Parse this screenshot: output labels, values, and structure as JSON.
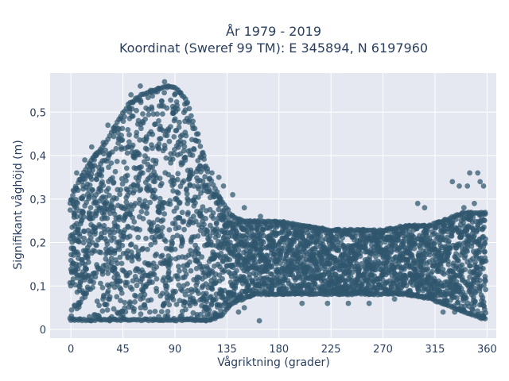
{
  "chart_data": {
    "type": "scatter",
    "title_line1": "År 1979 - 2019",
    "title_line2": "Koordinat (Sweref 99 TM): E 345894, N 6197960",
    "xlabel": "Vågriktning (grader)",
    "ylabel": "Signifikant våghöjd (m)",
    "xlim": [
      -18,
      368
    ],
    "ylim": [
      -0.02,
      0.59
    ],
    "xticks": [
      0,
      45,
      90,
      135,
      180,
      225,
      270,
      315,
      360
    ],
    "xtick_labels": [
      "0",
      "45",
      "90",
      "135",
      "180",
      "225",
      "270",
      "315",
      "360"
    ],
    "yticks": [
      0,
      0.1,
      0.2,
      0.3,
      0.4,
      0.5
    ],
    "ytick_labels": [
      "0",
      "0,1",
      "0,2",
      "0,3",
      "0,4",
      "0,5"
    ],
    "grid": true,
    "marker_color": "#2f566d",
    "background_color": "#e5e8f0",
    "envelope": {
      "direction": [
        0,
        10,
        20,
        30,
        40,
        50,
        60,
        70,
        80,
        90,
        100,
        110,
        120,
        130,
        140,
        150,
        160,
        180,
        200,
        225,
        250,
        270,
        290,
        310,
        320,
        330,
        340,
        350,
        360
      ],
      "height_max": [
        0.3,
        0.36,
        0.4,
        0.43,
        0.48,
        0.52,
        0.54,
        0.55,
        0.56,
        0.56,
        0.53,
        0.44,
        0.35,
        0.3,
        0.26,
        0.25,
        0.25,
        0.25,
        0.24,
        0.23,
        0.23,
        0.23,
        0.24,
        0.24,
        0.25,
        0.26,
        0.27,
        0.27,
        0.27
      ],
      "height_min": [
        0.02,
        0.02,
        0.02,
        0.02,
        0.02,
        0.02,
        0.02,
        0.02,
        0.02,
        0.02,
        0.02,
        0.02,
        0.02,
        0.03,
        0.06,
        0.07,
        0.08,
        0.08,
        0.08,
        0.08,
        0.08,
        0.08,
        0.08,
        0.07,
        0.06,
        0.05,
        0.04,
        0.03,
        0.02
      ]
    },
    "outliers": [
      {
        "x": 52,
        "y": 0.54
      },
      {
        "x": 60,
        "y": 0.56
      },
      {
        "x": 69,
        "y": 0.55
      },
      {
        "x": 81,
        "y": 0.57
      },
      {
        "x": 84,
        "y": 0.56
      },
      {
        "x": 100,
        "y": 0.52
      },
      {
        "x": 32,
        "y": 0.47
      },
      {
        "x": 28,
        "y": 0.43
      },
      {
        "x": 18,
        "y": 0.42
      },
      {
        "x": 12,
        "y": 0.39
      },
      {
        "x": 5,
        "y": 0.36
      },
      {
        "x": 2,
        "y": 0.32
      },
      {
        "x": 110,
        "y": 0.45
      },
      {
        "x": 115,
        "y": 0.4
      },
      {
        "x": 118,
        "y": 0.37
      },
      {
        "x": 122,
        "y": 0.36
      },
      {
        "x": 128,
        "y": 0.35
      },
      {
        "x": 132,
        "y": 0.33
      },
      {
        "x": 140,
        "y": 0.31
      },
      {
        "x": 150,
        "y": 0.28
      },
      {
        "x": 164,
        "y": 0.26
      },
      {
        "x": 145,
        "y": 0.04
      },
      {
        "x": 150,
        "y": 0.05
      },
      {
        "x": 163,
        "y": 0.02
      },
      {
        "x": 200,
        "y": 0.06
      },
      {
        "x": 222,
        "y": 0.06
      },
      {
        "x": 240,
        "y": 0.06
      },
      {
        "x": 258,
        "y": 0.06
      },
      {
        "x": 280,
        "y": 0.07
      },
      {
        "x": 300,
        "y": 0.08
      },
      {
        "x": 300,
        "y": 0.29
      },
      {
        "x": 306,
        "y": 0.28
      },
      {
        "x": 330,
        "y": 0.34
      },
      {
        "x": 336,
        "y": 0.33
      },
      {
        "x": 343,
        "y": 0.33
      },
      {
        "x": 345,
        "y": 0.36
      },
      {
        "x": 352,
        "y": 0.36
      },
      {
        "x": 354,
        "y": 0.34
      },
      {
        "x": 357,
        "y": 0.33
      },
      {
        "x": 349,
        "y": 0.29
      },
      {
        "x": 340,
        "y": 0.28
      },
      {
        "x": 322,
        "y": 0.04
      },
      {
        "x": 332,
        "y": 0.04
      },
      {
        "x": 340,
        "y": 0.04
      }
    ]
  }
}
